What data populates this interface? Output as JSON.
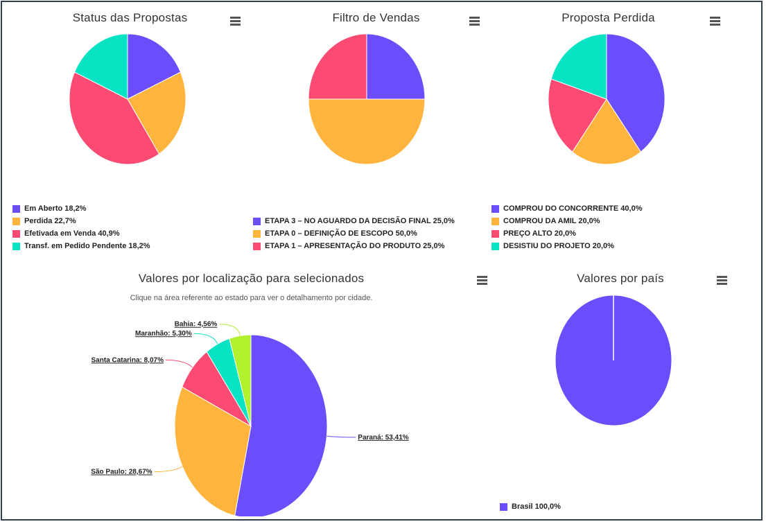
{
  "colors": {
    "purple": "#6c4dfc",
    "orange": "#feb43d",
    "pink": "#fc4b72",
    "teal": "#08e3c4",
    "lime": "#b2f12e"
  },
  "icons": {
    "menu": "hamburger-menu-icon"
  },
  "chart_data": [
    {
      "type": "pie",
      "title": "Status das Propostas",
      "categories": [
        "Em Aberto",
        "Perdida",
        "Efetivada em Venda",
        "Transf. em Pedido Pendente"
      ],
      "values": [
        18.2,
        22.7,
        40.9,
        18.2
      ],
      "labels": [
        "Em Aberto 18,2%",
        "Perdida 22,7%",
        "Efetivada em Venda 40,9%",
        "Transf. em Pedido Pendente 18,2%"
      ],
      "colors": [
        "#6c4dfc",
        "#feb43d",
        "#fc4b72",
        "#08e3c4"
      ],
      "legend": "bottom-left"
    },
    {
      "type": "pie",
      "title": "Filtro de Vendas",
      "categories": [
        "ETAPA 3 - NO AGUARDO DA DECISÃO FINAL",
        "ETAPA 0 - DEFINIÇÃO DE ESCOPO",
        "ETAPA 1 - APRESENTAÇÃO DO PRODUTO"
      ],
      "values": [
        25.0,
        50.0,
        25.0
      ],
      "labels": [
        "ETAPA 3 – NO AGUARDO DA DECISÃO FINAL 25,0%",
        "ETAPA 0 – DEFINIÇÃO DE ESCOPO 50,0%",
        "ETAPA 1 – APRESENTAÇÃO DO PRODUTO 25,0%"
      ],
      "colors": [
        "#6c4dfc",
        "#feb43d",
        "#fc4b72"
      ],
      "legend": "bottom-left"
    },
    {
      "type": "pie",
      "title": "Proposta Perdida",
      "categories": [
        "COMPROU DO CONCORRENTE",
        "COMPROU DA AMIL",
        "PREÇO ALTO",
        "DESISTIU DO PROJETO"
      ],
      "values": [
        40.0,
        20.0,
        20.0,
        20.0
      ],
      "labels": [
        "COMPROU DO CONCORRENTE 40,0%",
        "COMPROU DA AMIL 20,0%",
        "PREÇO ALTO 20,0%",
        "DESISTIU DO PROJETO 20,0%"
      ],
      "colors": [
        "#6c4dfc",
        "#feb43d",
        "#fc4b72",
        "#08e3c4"
      ],
      "legend": "bottom-left"
    },
    {
      "type": "pie",
      "title": "Valores por localização para selecionados",
      "subtitle": "Clique na área referente ao estado para ver o detalhamento por cidade.",
      "categories": [
        "Paraná",
        "São Paulo",
        "Santa Catarina",
        "Maranhão",
        "Bahia"
      ],
      "values": [
        53.41,
        28.67,
        8.07,
        5.3,
        4.56
      ],
      "labels": [
        "Paraná: 53,41%",
        "São Paulo: 28,67%",
        "Santa Catarina: 8,07%",
        "Maranhão: 5,30%",
        "Bahia: 4,56%"
      ],
      "colors": [
        "#6c4dfc",
        "#feb43d",
        "#fc4b72",
        "#08e3c4",
        "#b2f12e"
      ],
      "legend": "none"
    },
    {
      "type": "pie",
      "title": "Valores por país",
      "categories": [
        "Brasil"
      ],
      "values": [
        100.0
      ],
      "labels": [
        "Brasil 100,0%"
      ],
      "colors": [
        "#6c4dfc"
      ],
      "legend": "bottom-left"
    }
  ]
}
